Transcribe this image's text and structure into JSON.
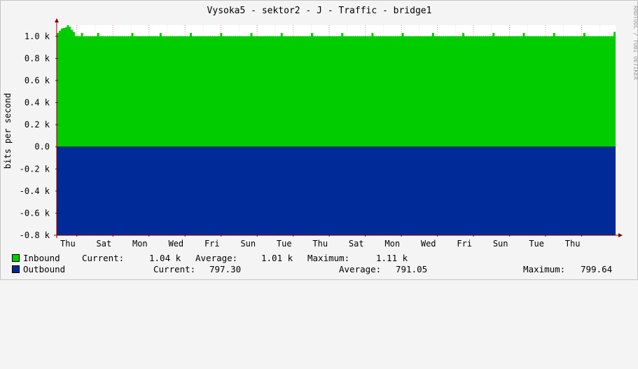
{
  "chart_data": {
    "type": "area",
    "title": "Vysoka5 - sektor2 - J - Traffic - bridge1",
    "ylabel": "bits per second",
    "credit": "RRDTOOL / TOBI OETIKER",
    "ylim": [
      -800,
      1100
    ],
    "yticks": [
      {
        "value": 1000,
        "label": "1.0 k"
      },
      {
        "value": 800,
        "label": "0.8 k"
      },
      {
        "value": 600,
        "label": "0.6 k"
      },
      {
        "value": 400,
        "label": "0.4 k"
      },
      {
        "value": 200,
        "label": "0.2 k"
      },
      {
        "value": 0,
        "label": "0.0"
      },
      {
        "value": -200,
        "label": "-0.2 k"
      },
      {
        "value": -400,
        "label": "-0.4 k"
      },
      {
        "value": -600,
        "label": "-0.6 k"
      },
      {
        "value": -800,
        "label": "-0.8 k"
      }
    ],
    "xticks": [
      "Thu",
      "Sat",
      "Mon",
      "Wed",
      "Fri",
      "Sun",
      "Tue",
      "Thu",
      "Sat",
      "Mon",
      "Wed",
      "Fri",
      "Sun",
      "Tue",
      "Thu"
    ],
    "grid": true,
    "series": [
      {
        "name": "Inbound",
        "color": "#00cc00",
        "values": [
          1030,
          1050,
          1070,
          1075,
          1080,
          1100,
          1085,
          1060,
          1040,
          1000,
          1000,
          1000,
          1030,
          1000,
          1000,
          1000,
          1000,
          1000,
          1000,
          1000,
          1030,
          1000,
          1000,
          1000,
          1000,
          1000,
          1000,
          1000,
          1000,
          1000,
          1000,
          1000,
          1000,
          1000,
          1000,
          1000,
          1000,
          1030,
          1000,
          1000,
          1000,
          1000,
          1000,
          1000,
          1000,
          1000,
          1000,
          1000,
          1000,
          1000,
          1000,
          1030,
          1000,
          1000,
          1000,
          1000,
          1000,
          1000,
          1000,
          1000,
          1000,
          1000,
          1000,
          1000,
          1000,
          1000,
          1030,
          1000,
          1000,
          1000,
          1000,
          1000,
          1000,
          1000,
          1000,
          1000,
          1000,
          1000,
          1000,
          1000,
          1000,
          1030,
          1000,
          1000,
          1000,
          1000,
          1000,
          1000,
          1000,
          1000,
          1000,
          1000,
          1000,
          1000,
          1000,
          1000,
          1030,
          1000,
          1000,
          1000,
          1000,
          1000,
          1000,
          1000,
          1000,
          1000,
          1000,
          1000,
          1000,
          1000,
          1000,
          1030,
          1000,
          1000,
          1000,
          1000,
          1000,
          1000,
          1000,
          1000,
          1000,
          1000,
          1000,
          1000,
          1000,
          1000,
          1030,
          1000,
          1000,
          1000,
          1000,
          1000,
          1000,
          1000,
          1000,
          1000,
          1000,
          1000,
          1000,
          1000,
          1000,
          1030,
          1000,
          1000,
          1000,
          1000,
          1000,
          1000,
          1000,
          1000,
          1000,
          1000,
          1000,
          1000,
          1000,
          1000,
          1030,
          1000,
          1000,
          1000,
          1000,
          1000,
          1000,
          1000,
          1000,
          1000,
          1000,
          1000,
          1000,
          1000,
          1000,
          1030,
          1000,
          1000,
          1000,
          1000,
          1000,
          1000,
          1000,
          1000,
          1000,
          1000,
          1000,
          1000,
          1000,
          1000,
          1030,
          1000,
          1000,
          1000,
          1000,
          1000,
          1000,
          1000,
          1000,
          1000,
          1000,
          1000,
          1000,
          1000,
          1000,
          1030,
          1000,
          1000,
          1000,
          1000,
          1000,
          1000,
          1000,
          1000,
          1000,
          1000,
          1000,
          1000,
          1000,
          1000,
          1030,
          1000,
          1000,
          1000,
          1000,
          1000,
          1000,
          1000,
          1000,
          1000,
          1000,
          1000,
          1000,
          1000,
          1000,
          1030,
          1000,
          1000,
          1000,
          1000,
          1000,
          1000,
          1000,
          1000,
          1000,
          1000,
          1000,
          1000,
          1000,
          1000,
          1030,
          1000,
          1000,
          1000,
          1000,
          1000,
          1000,
          1000,
          1000,
          1000,
          1000,
          1000,
          1000,
          1000,
          1000,
          1030,
          1000,
          1000,
          1000,
          1000,
          1000,
          1000,
          1000,
          1000,
          1000,
          1000,
          1000,
          1000,
          1000,
          1000,
          1040
        ]
      },
      {
        "name": "Outbound",
        "color": "#002a97",
        "values": [
          -797,
          -797,
          -797,
          -797,
          -797,
          -797,
          -797,
          -797,
          -797,
          -797,
          -797,
          -797,
          -797,
          -797,
          -797,
          -797,
          -797,
          -797,
          -797,
          -797,
          -797,
          -797,
          -797,
          -797,
          -797,
          -797,
          -797,
          -797,
          -797,
          -797,
          -797,
          -797,
          -797,
          -797,
          -797,
          -797,
          -797,
          -797,
          -797,
          -797,
          -797,
          -797,
          -797,
          -797,
          -797,
          -797,
          -797,
          -797,
          -797,
          -797,
          -797,
          -797,
          -797,
          -797,
          -797,
          -797,
          -797,
          -797,
          -797,
          -797,
          -797,
          -797,
          -797,
          -797,
          -797,
          -797,
          -797,
          -797,
          -797,
          -797,
          -797,
          -797,
          -797,
          -797,
          -797,
          -797,
          -797,
          -797,
          -797,
          -797,
          -797,
          -797,
          -797,
          -797,
          -797,
          -797,
          -797,
          -797,
          -797,
          -797,
          -797,
          -797,
          -797,
          -797,
          -797,
          -797,
          -797,
          -797,
          -797,
          -797,
          -797,
          -797,
          -797,
          -797,
          -797,
          -797,
          -797,
          -797,
          -797,
          -797,
          -797,
          -797,
          -797,
          -797,
          -797,
          -797,
          -797,
          -797,
          -797,
          -797,
          -797,
          -797,
          -797,
          -797,
          -797,
          -797,
          -797,
          -797,
          -797,
          -797,
          -797,
          -797,
          -797,
          -797,
          -797,
          -797,
          -797,
          -797,
          -797,
          -797,
          -797,
          -797,
          -797,
          -797,
          -797,
          -797,
          -797,
          -797,
          -797,
          -797,
          -797,
          -797,
          -797,
          -797,
          -797,
          -797,
          -797,
          -797,
          -797,
          -797,
          -797,
          -797,
          -797,
          -797,
          -797,
          -797,
          -797,
          -797,
          -797,
          -797,
          -797,
          -797,
          -797,
          -797,
          -797,
          -797,
          -797,
          -797,
          -797,
          -797,
          -797,
          -797,
          -797,
          -797,
          -797,
          -797,
          -797,
          -797,
          -797,
          -797,
          -797,
          -797,
          -797,
          -797,
          -797,
          -797,
          -797,
          -797,
          -797,
          -797,
          -797,
          -797,
          -797,
          -797,
          -797,
          -797,
          -797,
          -797,
          -797,
          -797,
          -797,
          -797,
          -797,
          -797,
          -797,
          -797,
          -797,
          -797,
          -797,
          -797,
          -797,
          -797,
          -797,
          -797,
          -797,
          -797,
          -797,
          -797,
          -797,
          -797,
          -797,
          -797,
          -797,
          -797,
          -797,
          -797,
          -797,
          -797,
          -797,
          -797,
          -797,
          -797,
          -797,
          -797,
          -797,
          -797,
          -797,
          -797,
          -797,
          -797,
          -797,
          -797,
          -797,
          -797,
          -797,
          -797,
          -797,
          -797,
          -797,
          -797,
          -797,
          -797,
          -797
        ]
      }
    ]
  },
  "legend": {
    "inbound": {
      "name": "Inbound",
      "color": "#00cc00",
      "current_label": "Current:",
      "current": "1.04 k",
      "average_label": "Average:",
      "average": "1.01 k",
      "maximum_label": "Maximum:",
      "maximum": "1.11 k"
    },
    "outbound": {
      "name": "Outbound",
      "color": "#002a97",
      "current_label": "Current:",
      "current": "797.30",
      "average_label": "Average:",
      "average": "791.05",
      "maximum_label": "Maximum:",
      "maximum": "799.64"
    }
  },
  "colors": {
    "background": "#f4f4f4",
    "canvas": "#ffffff",
    "grid_major": "#ff8080",
    "grid_minor": "#dddddd",
    "axis": "#800000"
  }
}
